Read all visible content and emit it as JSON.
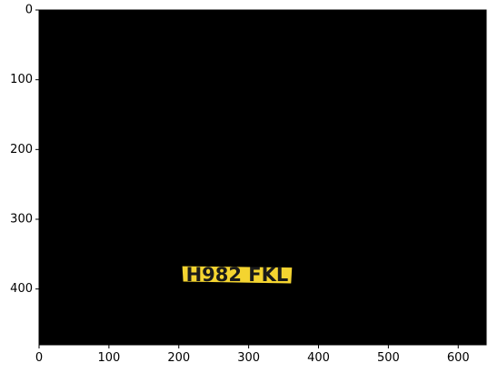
{
  "image": {
    "xlim": [
      0,
      640
    ],
    "ylim": [
      480,
      0
    ],
    "x_ticks": [
      0,
      100,
      200,
      300,
      400,
      500,
      600
    ],
    "y_ticks": [
      0,
      100,
      200,
      300,
      400
    ],
    "background_color": "#000000",
    "plate": {
      "text": "H982 FKL",
      "color": "#f4d430",
      "text_color": "#1a1a1a",
      "x_range": [
        205,
        362
      ],
      "y_range": [
        366,
        392
      ]
    }
  }
}
